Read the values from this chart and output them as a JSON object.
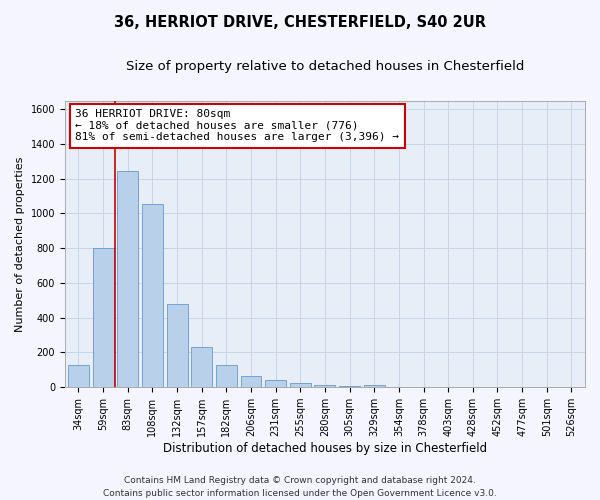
{
  "title_line1": "36, HERRIOT DRIVE, CHESTERFIELD, S40 2UR",
  "title_line2": "Size of property relative to detached houses in Chesterfield",
  "xlabel": "Distribution of detached houses by size in Chesterfield",
  "ylabel": "Number of detached properties",
  "categories": [
    "34sqm",
    "59sqm",
    "83sqm",
    "108sqm",
    "132sqm",
    "157sqm",
    "182sqm",
    "206sqm",
    "231sqm",
    "255sqm",
    "280sqm",
    "305sqm",
    "329sqm",
    "354sqm",
    "378sqm",
    "403sqm",
    "428sqm",
    "452sqm",
    "477sqm",
    "501sqm",
    "526sqm"
  ],
  "values": [
    130,
    800,
    1245,
    1055,
    480,
    232,
    127,
    67,
    40,
    27,
    15,
    5,
    14,
    3,
    2,
    2,
    1,
    1,
    0,
    0,
    0
  ],
  "bar_color": "#b8d0ea",
  "bar_edge_color": "#6699cc",
  "annotation_text": "36 HERRIOT DRIVE: 80sqm\n← 18% of detached houses are smaller (776)\n81% of semi-detached houses are larger (3,396) →",
  "annotation_box_color": "#ffffff",
  "annotation_border_color": "#cc0000",
  "vline_color": "#cc0000",
  "ylim": [
    0,
    1650
  ],
  "yticks": [
    0,
    200,
    400,
    600,
    800,
    1000,
    1200,
    1400,
    1600
  ],
  "grid_color": "#c8d4e8",
  "bg_color": "#e8eef8",
  "fig_bg_color": "#f5f5ff",
  "footer_text": "Contains HM Land Registry data © Crown copyright and database right 2024.\nContains public sector information licensed under the Open Government Licence v3.0.",
  "title_fontsize": 10.5,
  "subtitle_fontsize": 9.5,
  "xlabel_fontsize": 8.5,
  "ylabel_fontsize": 8,
  "tick_fontsize": 7,
  "annotation_fontsize": 8,
  "footer_fontsize": 6.5,
  "vline_x_index": 1.5
}
